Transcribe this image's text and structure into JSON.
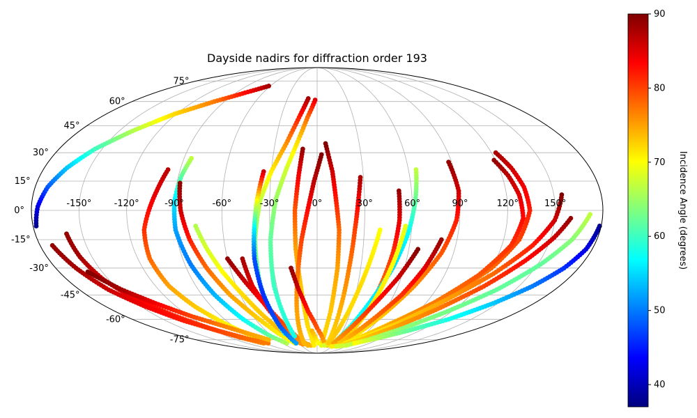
{
  "chart_data": {
    "type": "scatter",
    "projection": "mollweide",
    "title": "Dayside nadirs for diffraction order 193",
    "x_tick_labels": [
      "-150°",
      "-120°",
      "-90°",
      "-60°",
      "-30°",
      "0°",
      "30°",
      "60°",
      "90°",
      "120°",
      "150°"
    ],
    "x_ticks_deg": [
      -150,
      -120,
      -90,
      -60,
      -30,
      0,
      30,
      60,
      90,
      120,
      150
    ],
    "y_tick_labels": [
      "-75°",
      "-60°",
      "-45°",
      "-30°",
      "-15°",
      "0°",
      "15°",
      "30°",
      "45°",
      "60°",
      "75°"
    ],
    "y_ticks_deg": [
      -75,
      -60,
      -45,
      -30,
      -15,
      0,
      15,
      30,
      45,
      60,
      75
    ],
    "xlim": [
      -180,
      180
    ],
    "ylim": [
      -90,
      90
    ],
    "grid": true,
    "colorbar": {
      "label": "Incidence Angle (degrees)",
      "min": 37,
      "max": 90,
      "ticks": [
        40,
        50,
        60,
        70,
        80,
        90
      ],
      "tick_labels": [
        "40",
        "50",
        "60",
        "70",
        "80",
        "90"
      ],
      "colormap": "jet"
    },
    "series": [
      {
        "lon": [
          -98,
          -102,
          -106,
          -110,
          -112,
          -110,
          -104,
          -96,
          -88,
          -80
        ],
        "lat": [
          21,
          10,
          0,
          -10,
          -25,
          -40,
          -52,
          -62,
          -70,
          -76
        ],
        "incidence": [
          87,
          85,
          83,
          81,
          78,
          75,
          73,
          71,
          70,
          72
        ]
      },
      {
        "lon": [
          -85,
          -88,
          -90,
          -90,
          -86,
          -80,
          -72,
          -62,
          -52
        ],
        "lat": [
          27,
          18,
          5,
          -10,
          -28,
          -45,
          -60,
          -72,
          -78
        ],
        "incidence": [
          67,
          62,
          56,
          52,
          50,
          53,
          57,
          62,
          66
        ]
      },
      {
        "lon": [
          -88,
          -86,
          -82,
          -76,
          -68,
          -58,
          -48,
          -38
        ],
        "lat": [
          14,
          0,
          -15,
          -30,
          -45,
          -58,
          -70,
          -78
        ],
        "incidence": [
          89,
          86,
          82,
          78,
          75,
          73,
          71,
          70
        ]
      },
      {
        "lon": [
          -77,
          -72,
          -66,
          -58,
          -50,
          -42,
          -34,
          -26
        ],
        "lat": [
          -8,
          -20,
          -32,
          -45,
          -58,
          -68,
          -76,
          -79
        ],
        "incidence": [
          66,
          68,
          70,
          72,
          73,
          74,
          75,
          76
        ]
      },
      {
        "lon": [
          -60,
          -52,
          -44,
          -36,
          -28,
          -20,
          -12
        ],
        "lat": [
          -25,
          -38,
          -50,
          -62,
          -72,
          -78,
          -80
        ],
        "incidence": [
          89,
          86,
          83,
          80,
          77,
          75,
          74
        ]
      },
      {
        "lon": [
          -50,
          -48,
          -42,
          -34,
          -26,
          -18
        ],
        "lat": [
          -25,
          -40,
          -55,
          -67,
          -76,
          -80
        ],
        "incidence": [
          88,
          85,
          82,
          79,
          76,
          74
        ]
      },
      {
        "lon": [
          -9,
          -15,
          -22,
          -30,
          -36,
          -40,
          -42,
          -40
        ],
        "lat": [
          62,
          50,
          35,
          20,
          5,
          -15,
          -40,
          -70
        ],
        "incidence": [
          88,
          82,
          76,
          71,
          67,
          64,
          61,
          58
        ]
      },
      {
        "lon": [
          -2,
          -8,
          -14,
          -20,
          -26,
          -30,
          -32,
          -30
        ],
        "lat": [
          61,
          50,
          36,
          22,
          6,
          -15,
          -40,
          -72
        ],
        "incidence": [
          85,
          78,
          72,
          68,
          65,
          62,
          60,
          58
        ]
      },
      {
        "lon": [
          -35,
          -38,
          -40,
          -42,
          -42,
          -40,
          -36
        ],
        "lat": [
          20,
          5,
          -10,
          -25,
          -45,
          -65,
          -78
        ],
        "incidence": [
          86,
          70,
          56,
          48,
          46,
          48,
          52
        ]
      },
      {
        "lon": [
          -10,
          -12,
          -14,
          -14,
          -12,
          -10,
          -6
        ],
        "lat": [
          32,
          18,
          0,
          -20,
          -42,
          -65,
          -80
        ],
        "incidence": [
          89,
          84,
          79,
          75,
          73,
          72,
          71
        ]
      },
      {
        "lon": [
          3,
          -2,
          -6,
          -10,
          -14,
          -18,
          -22
        ],
        "lat": [
          29,
          15,
          0,
          -15,
          -35,
          -55,
          -78
        ],
        "incidence": [
          90,
          87,
          83,
          80,
          77,
          75,
          74
        ]
      },
      {
        "lon": [
          6,
          10,
          12,
          14,
          14,
          12,
          8
        ],
        "lat": [
          35,
          20,
          5,
          -10,
          -30,
          -55,
          -78
        ],
        "incidence": [
          90,
          86,
          82,
          78,
          75,
          73,
          72
        ]
      },
      {
        "lon": [
          -18,
          -14,
          -8,
          0,
          8,
          14,
          20
        ],
        "lat": [
          -30,
          -42,
          -55,
          -66,
          -74,
          -79,
          -80
        ],
        "incidence": [
          89,
          86,
          82,
          79,
          76,
          74,
          73
        ]
      },
      {
        "lon": [
          -6,
          -2,
          2,
          8,
          14,
          20,
          28
        ],
        "lat": [
          -68,
          -74,
          -78,
          -80,
          -80,
          -79,
          -77
        ],
        "incidence": [
          74,
          72,
          70,
          69,
          68,
          68,
          68
        ]
      },
      {
        "lon": [
          28,
          26,
          24,
          22,
          20,
          18
        ],
        "lat": [
          17,
          5,
          -10,
          -30,
          -55,
          -78
        ],
        "incidence": [
          88,
          84,
          80,
          77,
          74,
          72
        ]
      },
      {
        "lon": [
          52,
          52,
          50,
          46,
          40,
          34
        ],
        "lat": [
          10,
          -5,
          -22,
          -45,
          -65,
          -79
        ],
        "incidence": [
          89,
          85,
          81,
          77,
          74,
          72
        ]
      },
      {
        "lon": [
          40,
          36,
          32,
          28,
          24,
          20
        ],
        "lat": [
          -10,
          -25,
          -40,
          -55,
          -68,
          -78
        ],
        "incidence": [
          70,
          71,
          72,
          72,
          73,
          73
        ]
      },
      {
        "lon": [
          65,
          62,
          58,
          52,
          44,
          36,
          28
        ],
        "lat": [
          21,
          5,
          -12,
          -30,
          -48,
          -65,
          -78
        ],
        "incidence": [
          67,
          62,
          57,
          55,
          56,
          58,
          62
        ]
      },
      {
        "lon": [
          56,
          52,
          48,
          44,
          40,
          38
        ],
        "lat": [
          -8,
          -25,
          -42,
          -58,
          -70,
          -78
        ],
        "incidence": [
          69,
          70,
          71,
          72,
          73,
          73
        ]
      },
      {
        "lon": [
          66,
          58,
          48,
          38,
          28
        ],
        "lat": [
          -20,
          -35,
          -50,
          -65,
          -78
        ],
        "incidence": [
          90,
          86,
          82,
          78,
          75
        ]
      },
      {
        "lon": [
          88,
          90,
          88,
          82,
          72,
          60,
          46
        ],
        "lat": [
          25,
          10,
          -5,
          -22,
          -40,
          -58,
          -76
        ],
        "incidence": [
          89,
          86,
          82,
          79,
          76,
          73,
          71
        ]
      },
      {
        "lon": [
          80,
          74,
          66,
          56,
          46,
          38
        ],
        "lat": [
          -15,
          -30,
          -45,
          -58,
          -70,
          -78
        ],
        "incidence": [
          89,
          85,
          81,
          78,
          75,
          73
        ]
      },
      {
        "lon": [
          123,
          128,
          132,
          134,
          130,
          120,
          104,
          84,
          64,
          48
        ],
        "lat": [
          30,
          22,
          12,
          0,
          -15,
          -30,
          -45,
          -58,
          -70,
          -78
        ],
        "incidence": [
          88,
          86,
          84,
          82,
          80,
          78,
          76,
          74,
          72,
          71
        ]
      },
      {
        "lon": [
          119,
          124,
          128,
          130,
          126,
          114,
          96,
          76,
          58
        ],
        "lat": [
          26,
          18,
          8,
          -4,
          -18,
          -34,
          -50,
          -64,
          -76
        ],
        "incidence": [
          89,
          87,
          85,
          83,
          81,
          79,
          77,
          75,
          73
        ]
      },
      {
        "lon": [
          155,
          150,
          140,
          124,
          104,
          84,
          64,
          46
        ],
        "lat": [
          8,
          -5,
          -18,
          -33,
          -48,
          -62,
          -73,
          -80
        ],
        "incidence": [
          90,
          86,
          82,
          78,
          75,
          73,
          71,
          70
        ]
      },
      {
        "lon": [
          160,
          152,
          140,
          124,
          104,
          84,
          64,
          46,
          30
        ],
        "lat": [
          -4,
          -14,
          -26,
          -40,
          -54,
          -66,
          -75,
          -80,
          -81
        ],
        "incidence": [
          89,
          86,
          83,
          80,
          77,
          75,
          73,
          72,
          71
        ]
      },
      {
        "lon": [
          172,
          164,
          152,
          136,
          116,
          96,
          76,
          56,
          40
        ],
        "lat": [
          -2,
          -15,
          -28,
          -42,
          -55,
          -66,
          -75,
          -80,
          -81
        ],
        "incidence": [
          67,
          64,
          62,
          62,
          63,
          64,
          66,
          67,
          68
        ]
      },
      {
        "lon": [
          -178,
          -176,
          -172,
          -165,
          -155,
          -140,
          -122,
          -100,
          -80,
          -62
        ],
        "lat": [
          -8,
          2,
          12,
          22,
          32,
          42,
          52,
          60,
          66,
          71
        ],
        "incidence": [
          38,
          42,
          48,
          54,
          60,
          66,
          72,
          77,
          83,
          88
        ]
      },
      {
        "lon": [
          -160,
          -158,
          -154,
          -146,
          -134,
          -120,
          -106,
          -92
        ],
        "lat": [
          -12,
          -24,
          -36,
          -47,
          -57,
          -66,
          -73,
          -78
        ],
        "incidence": [
          89,
          88,
          86,
          84,
          82,
          80,
          78,
          76
        ]
      },
      {
        "lon": [
          -172,
          -166,
          -158,
          -146,
          -132,
          -116,
          -100,
          -84
        ],
        "lat": [
          -18,
          -30,
          -42,
          -52,
          -61,
          -68,
          -74,
          -78
        ],
        "incidence": [
          89,
          88,
          86,
          84,
          82,
          80,
          78,
          77
        ]
      },
      {
        "lon": [
          -160,
          -148,
          -134,
          -118,
          -102,
          -86,
          -72
        ],
        "lat": [
          -32,
          -42,
          -50,
          -58,
          -64,
          -70,
          -75
        ],
        "incidence": [
          90,
          88,
          84,
          80,
          77,
          75,
          74
        ]
      },
      {
        "lon": [
          179,
          176,
          170,
          160,
          146,
          128,
          106,
          84,
          64
        ],
        "lat": [
          -8,
          -20,
          -30,
          -40,
          -50,
          -60,
          -68,
          -74,
          -78
        ],
        "incidence": [
          38,
          42,
          46,
          50,
          54,
          58,
          62,
          66,
          70
        ]
      }
    ]
  }
}
